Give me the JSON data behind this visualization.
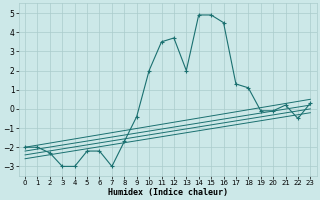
{
  "xlabel": "Humidex (Indice chaleur)",
  "bg_color": "#cce8e8",
  "grid_color": "#aacccc",
  "line_color": "#1a7070",
  "xlim": [
    -0.5,
    23.5
  ],
  "ylim": [
    -3.5,
    5.5
  ],
  "xticks": [
    0,
    1,
    2,
    3,
    4,
    5,
    6,
    7,
    8,
    9,
    10,
    11,
    12,
    13,
    14,
    15,
    16,
    17,
    18,
    19,
    20,
    21,
    22,
    23
  ],
  "yticks": [
    -3,
    -2,
    -1,
    0,
    1,
    2,
    3,
    4,
    5
  ],
  "series": [
    [
      0,
      -2.0
    ],
    [
      1,
      -2.0
    ],
    [
      2,
      -2.3
    ],
    [
      3,
      -3.0
    ],
    [
      4,
      -3.0
    ],
    [
      5,
      -2.2
    ],
    [
      6,
      -2.2
    ],
    [
      7,
      -3.0
    ],
    [
      8,
      -1.7
    ],
    [
      9,
      -0.4
    ],
    [
      10,
      2.0
    ],
    [
      11,
      3.5
    ],
    [
      12,
      3.7
    ],
    [
      13,
      2.0
    ],
    [
      14,
      4.9
    ],
    [
      15,
      4.9
    ],
    [
      16,
      4.5
    ],
    [
      17,
      1.3
    ],
    [
      18,
      1.1
    ],
    [
      19,
      -0.1
    ],
    [
      20,
      -0.1
    ],
    [
      21,
      0.2
    ],
    [
      22,
      -0.5
    ],
    [
      23,
      0.3
    ]
  ],
  "straight_lines": [
    [
      [
        0,
        -2.0
      ],
      [
        23,
        0.5
      ]
    ],
    [
      [
        0,
        -2.2
      ],
      [
        23,
        0.2
      ]
    ],
    [
      [
        0,
        -2.4
      ],
      [
        23,
        0.0
      ]
    ],
    [
      [
        0,
        -2.6
      ],
      [
        23,
        -0.2
      ]
    ]
  ]
}
